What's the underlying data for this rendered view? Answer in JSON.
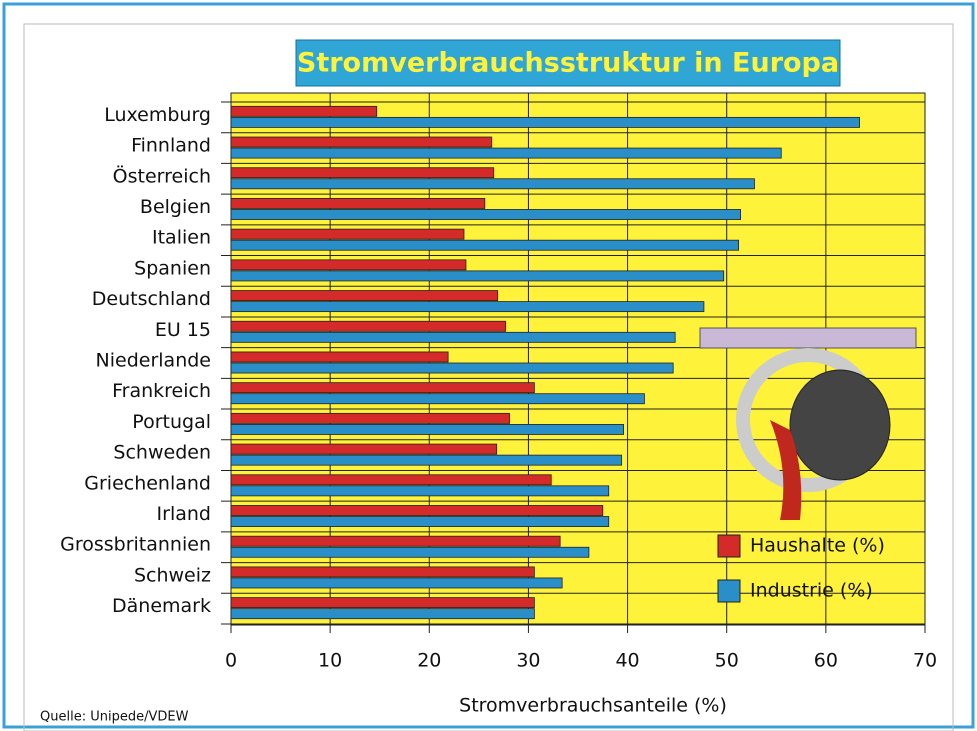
{
  "chart_data": {
    "type": "hbar",
    "title": "Stromverbrauchsstruktur in Europa",
    "x_label": "Stromverbrauchsanteile (%)",
    "source": "Quelle: Unipede/VDEW",
    "categories": [
      "Luxemburg",
      "Finnland",
      "Österreich",
      "Belgien",
      "Italien",
      "Spanien",
      "Deutschland",
      "EU 15",
      "Niederlande",
      "Frankreich",
      "Portugal",
      "Schweden",
      "Griechenland",
      "Irland",
      "Grossbritannien",
      "Schweiz",
      "Dänemark"
    ],
    "series": [
      {
        "name": "Haushalte (%)",
        "color": "#d42a2a",
        "values": [
          14.7,
          26.3,
          26.5,
          25.6,
          23.5,
          23.7,
          26.9,
          27.7,
          21.9,
          30.6,
          28.1,
          26.8,
          32.3,
          37.5,
          33.2,
          30.6,
          30.6
        ]
      },
      {
        "name": "Industrie (%)",
        "color": "#2a8fc9",
        "values": [
          63.4,
          55.5,
          52.8,
          51.4,
          51.2,
          49.7,
          47.7,
          44.8,
          44.6,
          41.7,
          39.6,
          39.4,
          38.1,
          38.1,
          36.1,
          33.4,
          30.6
        ]
      }
    ],
    "xlim": [
      0,
      70
    ],
    "xticks": [
      0,
      10,
      20,
      30,
      40,
      50,
      60,
      70
    ],
    "grid": true,
    "legend": "lower right",
    "background": "#fff23a"
  }
}
